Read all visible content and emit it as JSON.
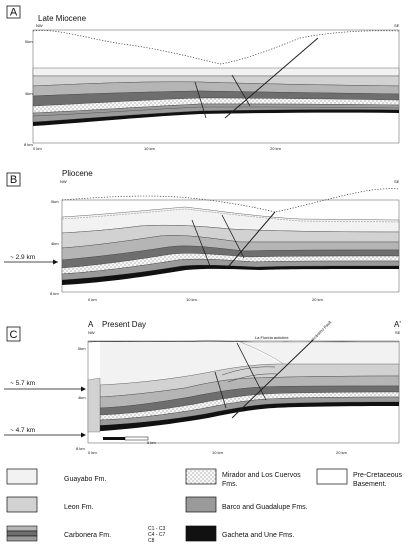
{
  "panels": [
    {
      "letter": "A",
      "title": "Late Miocene",
      "nw": "NW",
      "se": "SE",
      "depths": [
        "0km",
        "4km",
        "8 km"
      ],
      "distances": [
        "0 km",
        "10 km",
        "20 km"
      ]
    },
    {
      "letter": "B",
      "title": "Pliocene",
      "nw": "NW",
      "se": "SE",
      "depths": [
        "0km",
        "4km",
        "8 km"
      ],
      "distances": [
        "0 km",
        "10 km",
        "20 km"
      ],
      "arrow_label": "~ 2.9 km"
    },
    {
      "letter": "C",
      "title": "Present Day",
      "section_start": "A",
      "section_end": "A'",
      "nw": "NW",
      "se": "SE",
      "depths": [
        "0km",
        "4km",
        "8 km"
      ],
      "distances": [
        "0 km",
        "10 km",
        "20 km"
      ],
      "feature_anticline": "La Florida anticline",
      "feature_fault": "Guaicáramo Fault",
      "arrow_label_upper": "~ 5.7 km",
      "arrow_label_lower": "~ 4.7 km",
      "scale_bar_label": "5 km"
    }
  ],
  "legend": {
    "guayabo": "Guayabo Fm.",
    "leon": "Leon Fm.",
    "carbonera": "Carbonera Fm.",
    "carbonera_sub1": "C1 - C3",
    "carbonera_sub2": "C4 - C7",
    "carbonera_sub3": "C8",
    "mirador_line1": "Mirador and Los Cuervos",
    "mirador_line2": "Fms.",
    "barco": "Barco and Guadalupe Fms.",
    "gacheta": "Gacheta and Une Fms.",
    "basement_line1": "Pre-Cretaceous",
    "basement_line2": "Basement."
  },
  "colors": {
    "guayabo": "#f2f2f2",
    "leon": "#d2d2d2",
    "carbonera_light": "#b5b5b5",
    "carbonera_dark": "#6e6e6e",
    "mirador": "#f7f7f7",
    "barco": "#9a9a9a",
    "gacheta": "#111111",
    "basement": "#ffffff"
  }
}
